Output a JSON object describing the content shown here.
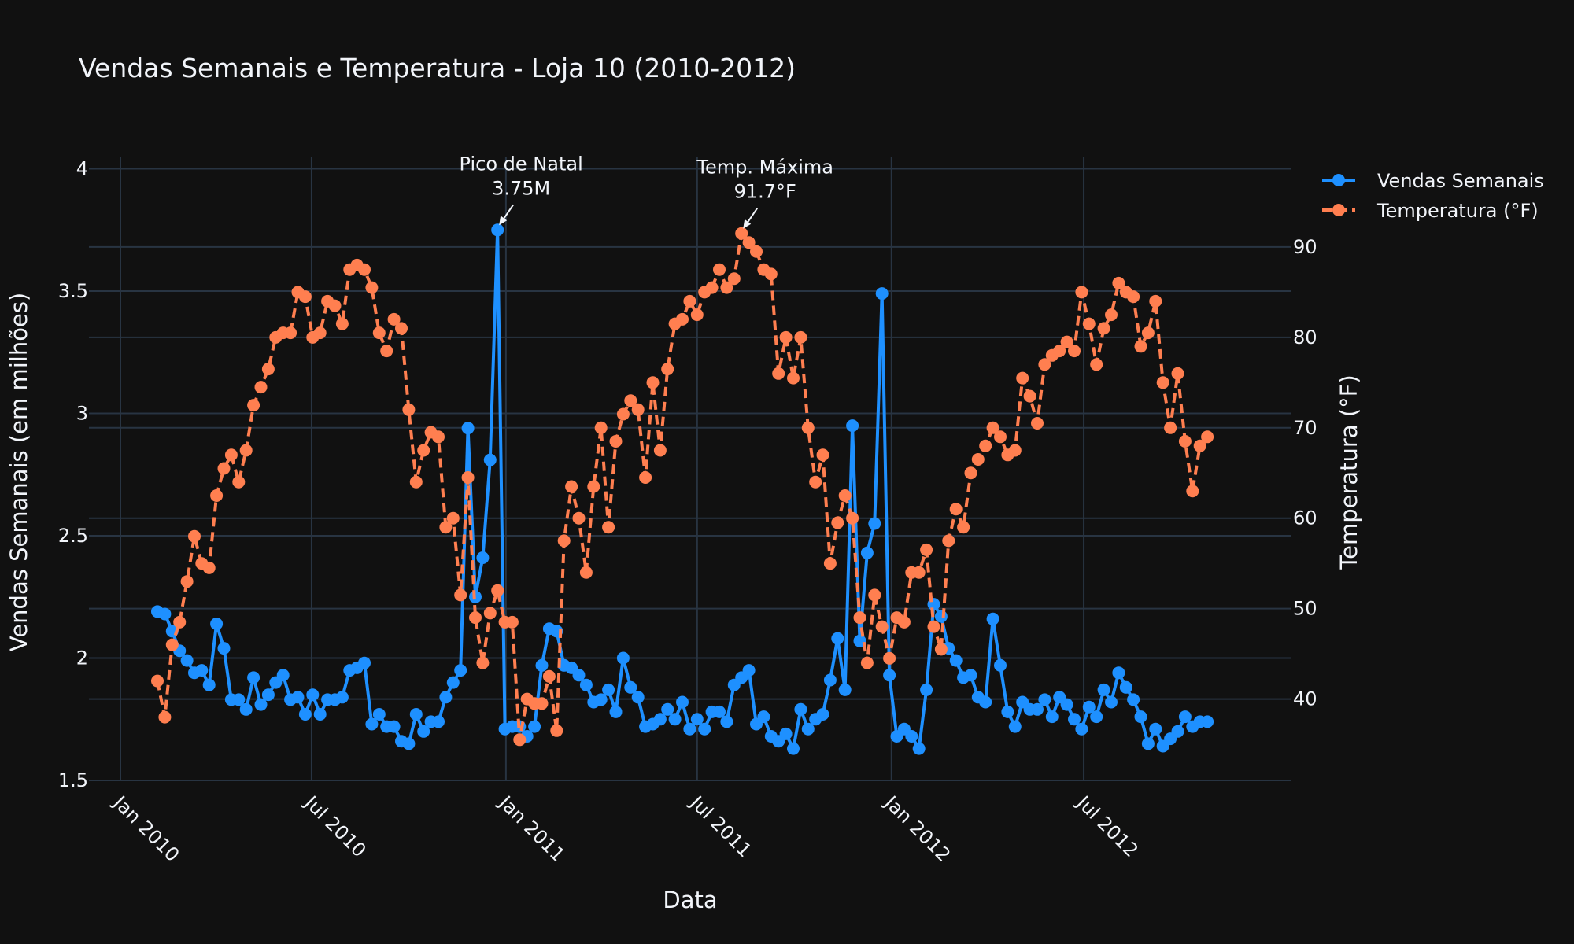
{
  "chart_data": {
    "type": "line",
    "title": "Vendas Semanais e Temperatura - Loja 10 (2010-2012)",
    "xlabel": "Data",
    "ylabel": "Vendas Semanais (em milhões)",
    "ylabel_right": "Temperatura (°F)",
    "x_tick_labels": [
      "Jan 2010",
      "Jul 2010",
      "Jan 2011",
      "Jul 2011",
      "Jan 2012",
      "Jul 2012"
    ],
    "y_tick_labels": [
      "1.5",
      "2",
      "2.5",
      "3",
      "3.5",
      "4"
    ],
    "y2_tick_labels": [
      "40",
      "50",
      "60",
      "70",
      "80",
      "90"
    ],
    "ylim": [
      1.5,
      4.05
    ],
    "y2lim": [
      31,
      100
    ],
    "xlim": [
      "2010-01-01",
      "2012-12-29"
    ],
    "grid": true,
    "legend_position": "top-right",
    "colors": {
      "sales": "#1e90ff",
      "temperature": "#ff7f50",
      "background": "#111111",
      "grid": "#283442"
    },
    "series": [
      {
        "name": "Vendas Semanais",
        "axis": "left",
        "style": "solid",
        "start_date": "2010-02-05",
        "values": [
          2.19,
          2.18,
          2.11,
          2.03,
          1.99,
          1.94,
          1.95,
          1.89,
          2.14,
          2.04,
          1.83,
          1.83,
          1.79,
          1.92,
          1.81,
          1.85,
          1.9,
          1.93,
          1.83,
          1.84,
          1.77,
          1.85,
          1.77,
          1.83,
          1.83,
          1.84,
          1.95,
          1.96,
          1.98,
          1.73,
          1.77,
          1.72,
          1.72,
          1.66,
          1.65,
          1.77,
          1.7,
          1.74,
          1.74,
          1.84,
          1.9,
          1.95,
          2.94,
          2.25,
          2.41,
          2.81,
          3.75,
          1.71,
          1.72,
          1.72,
          1.68,
          1.72,
          1.97,
          2.12,
          2.11,
          1.97,
          1.96,
          1.93,
          1.89,
          1.82,
          1.83,
          1.87,
          1.78,
          2.0,
          1.88,
          1.84,
          1.72,
          1.73,
          1.75,
          1.79,
          1.75,
          1.82,
          1.71,
          1.75,
          1.71,
          1.78,
          1.78,
          1.74,
          1.89,
          1.92,
          1.95,
          1.73,
          1.76,
          1.68,
          1.66,
          1.69,
          1.63,
          1.79,
          1.71,
          1.75,
          1.77,
          1.91,
          2.08,
          1.87,
          2.95,
          2.07,
          2.43,
          2.55,
          3.49,
          1.93,
          1.68,
          1.71,
          1.68,
          1.63,
          1.87,
          2.22,
          2.17,
          2.04,
          1.99,
          1.92,
          1.93,
          1.84,
          1.82,
          2.16,
          1.97,
          1.78,
          1.72,
          1.82,
          1.79,
          1.79,
          1.83,
          1.76,
          1.84,
          1.81,
          1.75,
          1.71,
          1.8,
          1.76,
          1.87,
          1.82,
          1.94,
          1.88,
          1.83,
          1.76,
          1.65,
          1.71,
          1.64,
          1.67,
          1.7,
          1.76,
          1.72,
          1.74,
          1.74
        ]
      },
      {
        "name": "Temperatura (°F)",
        "axis": "right",
        "style": "dash",
        "start_date": "2010-02-05",
        "values": [
          42,
          38,
          46,
          48.5,
          53,
          58,
          55,
          54.5,
          62.5,
          65.5,
          67,
          64,
          67.5,
          72.5,
          74.5,
          76.5,
          80,
          80.5,
          80.5,
          85,
          84.5,
          80,
          80.5,
          84,
          83.5,
          81.5,
          87.5,
          88,
          87.5,
          85.5,
          80.5,
          78.5,
          82,
          81,
          72,
          64,
          67.5,
          69.5,
          69,
          59,
          60,
          51.5,
          64.5,
          49,
          44,
          49.5,
          52,
          48.5,
          48.5,
          35.5,
          40,
          39.5,
          39.5,
          42.5,
          36.5,
          57.5,
          63.5,
          60,
          54,
          63.5,
          70,
          59,
          68.5,
          71.5,
          73,
          72,
          64.5,
          75,
          67.5,
          76.5,
          81.5,
          82,
          84,
          82.5,
          85,
          85.5,
          87.5,
          85.5,
          86.5,
          91.5,
          90.5,
          89.5,
          87.5,
          87,
          76,
          80,
          75.5,
          80,
          70,
          64,
          67,
          55,
          59.5,
          62.5,
          60,
          49,
          44,
          51.5,
          48,
          44.5,
          49,
          48.5,
          54,
          54,
          56.5,
          48,
          45.5,
          57.5,
          61,
          59,
          65,
          66.5,
          68,
          70,
          69,
          67,
          67.5,
          75.5,
          73.5,
          70.5,
          77,
          78,
          78.5,
          79.5,
          78.5,
          85,
          81.5,
          77,
          81,
          82.5,
          86,
          85,
          84.5,
          79,
          80.5,
          84,
          75,
          70,
          76,
          68.5,
          63,
          68,
          69
        ]
      }
    ],
    "annotations": [
      {
        "line1": "Pico de Natal",
        "line2": "3.75M",
        "series": "Vendas Semanais",
        "point_index": 46
      },
      {
        "line1": "Temp. Máxima",
        "line2": "91.7°F",
        "series": "Temperatura (°F)",
        "point_index": 79
      }
    ]
  }
}
